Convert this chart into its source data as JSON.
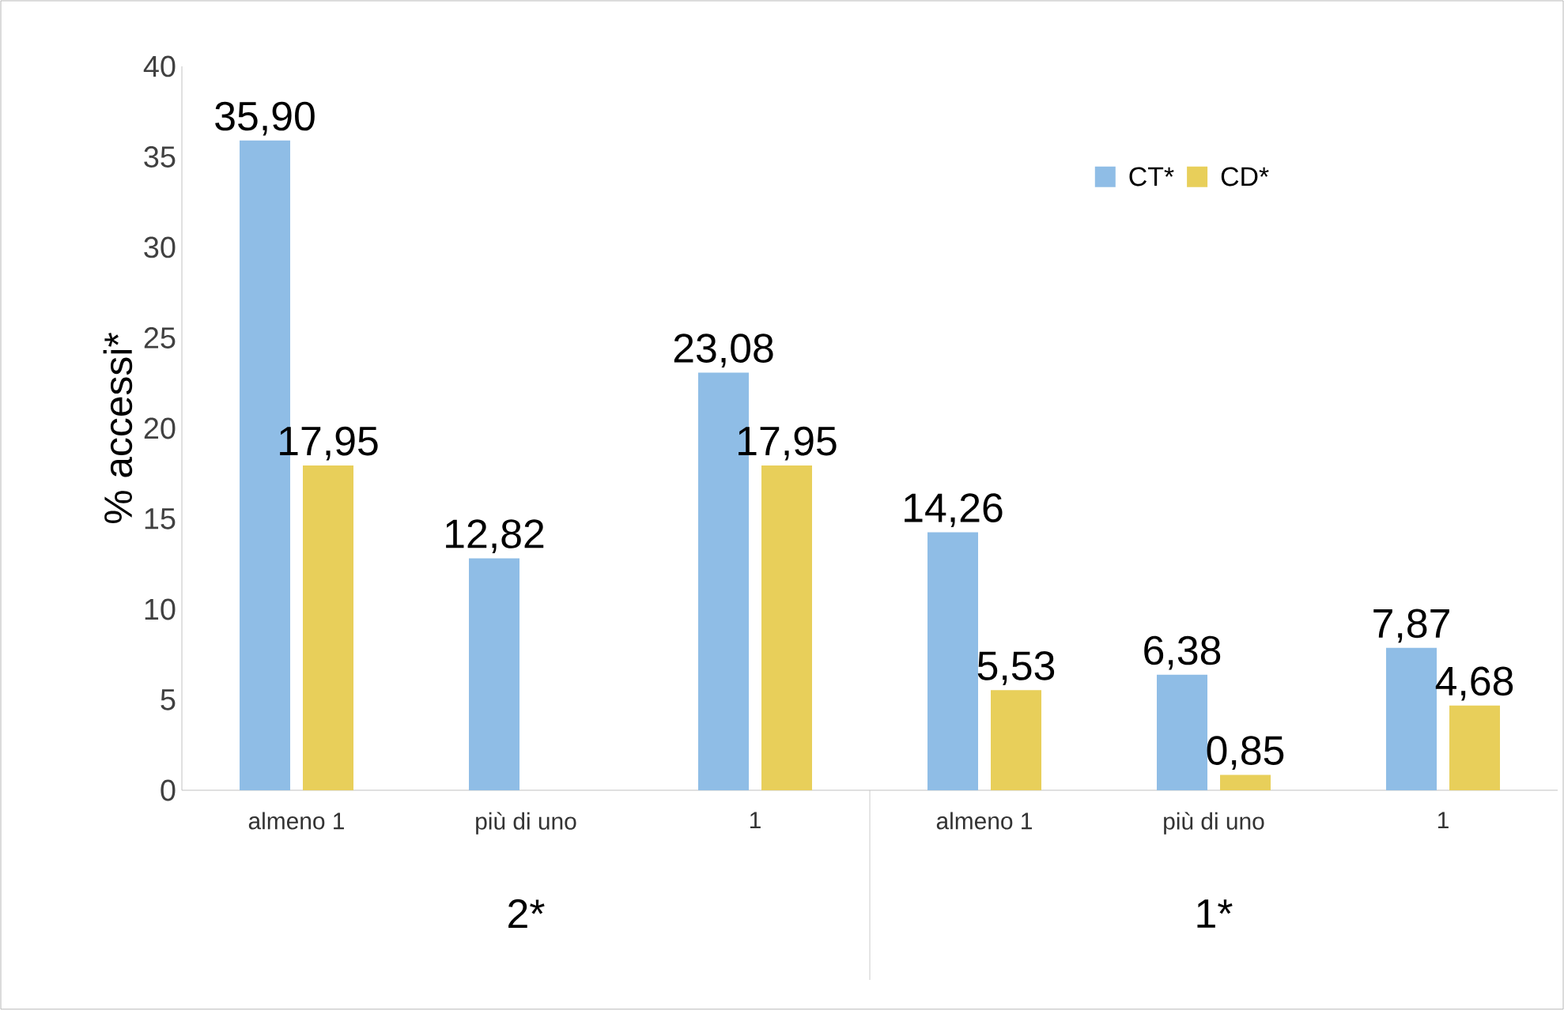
{
  "chart_data": {
    "type": "bar",
    "ylabel": "% accessi*",
    "categories": [
      "almeno 1",
      "più di uno",
      "1",
      "almeno 1",
      "più di uno",
      "1"
    ],
    "series": [
      {
        "name": "CT*",
        "color": "#8fbde6",
        "values": [
          35.9,
          12.82,
          23.08,
          14.26,
          6.38,
          7.87
        ],
        "value_labels": [
          "35,90",
          "12,82",
          "23,08",
          "14,26",
          "6,38",
          "7,87"
        ]
      },
      {
        "name": "CD*",
        "color": "#e8cf5a",
        "values": [
          17.95,
          null,
          17.95,
          5.53,
          0.85,
          4.68
        ],
        "value_labels": [
          "17,95",
          null,
          "17,95",
          "5,53",
          "0,85",
          "4,68"
        ]
      }
    ],
    "annotations": [
      "2*",
      "1*"
    ],
    "ylim": [
      0,
      40
    ],
    "yticks": [
      0,
      5,
      10,
      15,
      20,
      25,
      30,
      35,
      40
    ],
    "grid": false,
    "legend": "top right"
  }
}
